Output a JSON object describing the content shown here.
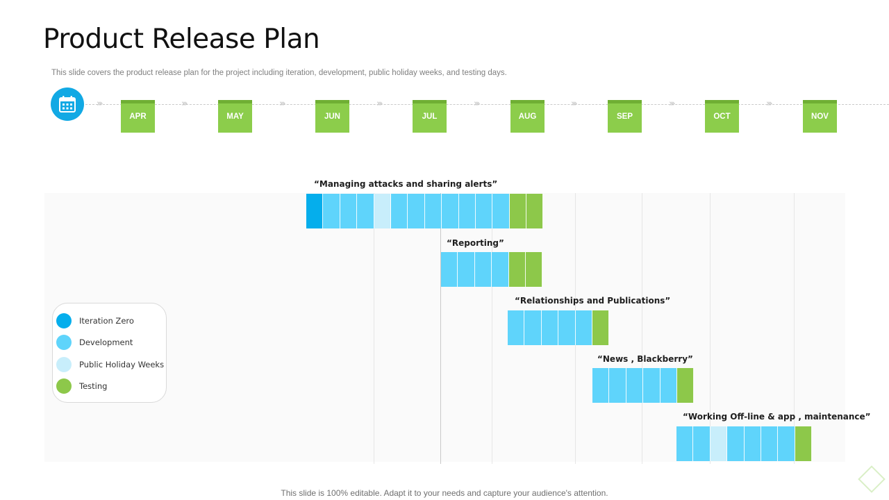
{
  "slide": {
    "title": "Product Release Plan",
    "subtitle": "This slide covers the product release plan for the project including iteration, development, public holiday weeks, and testing days.",
    "footer": "This slide is 100% editable. Adapt it to your needs and capture your audience's attention."
  },
  "timeline": {
    "icon": "calendar-icon",
    "months": [
      "APR",
      "MAY",
      "JUN",
      "JUL",
      "AUG",
      "SEP",
      "OCT",
      "NOV"
    ]
  },
  "colors": {
    "iteration": "#05aeec",
    "development": "#5fd4fb",
    "holiday": "#c8eefb",
    "testing": "#8dc84a"
  },
  "tasks": [
    {
      "label": "“Managing  attacks and sharing alerts”",
      "segments": [
        "iteration",
        "development",
        "development",
        "development",
        "holiday",
        "development",
        "development",
        "development",
        "development",
        "development",
        "development",
        "development",
        "testing",
        "testing"
      ]
    },
    {
      "label": "“Reporting”",
      "segments": [
        "development",
        "development",
        "development",
        "development",
        "testing",
        "testing"
      ]
    },
    {
      "label": "“Relationships  and Publications”",
      "segments": [
        "development",
        "development",
        "development",
        "development",
        "development",
        "testing"
      ]
    },
    {
      "label": "“News , Blackberry”",
      "segments": [
        "development",
        "development",
        "development",
        "development",
        "development",
        "testing"
      ]
    },
    {
      "label": "“Working Off-line & app , maintenance”",
      "segments": [
        "development",
        "development",
        "holiday",
        "development",
        "development",
        "development",
        "development",
        "testing"
      ]
    }
  ],
  "legend": [
    {
      "label": "Iteration Zero",
      "color": "#05aeec"
    },
    {
      "label": "Development",
      "color": "#5fd4fb"
    },
    {
      "label": "Public Holiday Weeks",
      "color": "#c8eefb"
    },
    {
      "label": "Testing",
      "color": "#8dc84a"
    }
  ]
}
